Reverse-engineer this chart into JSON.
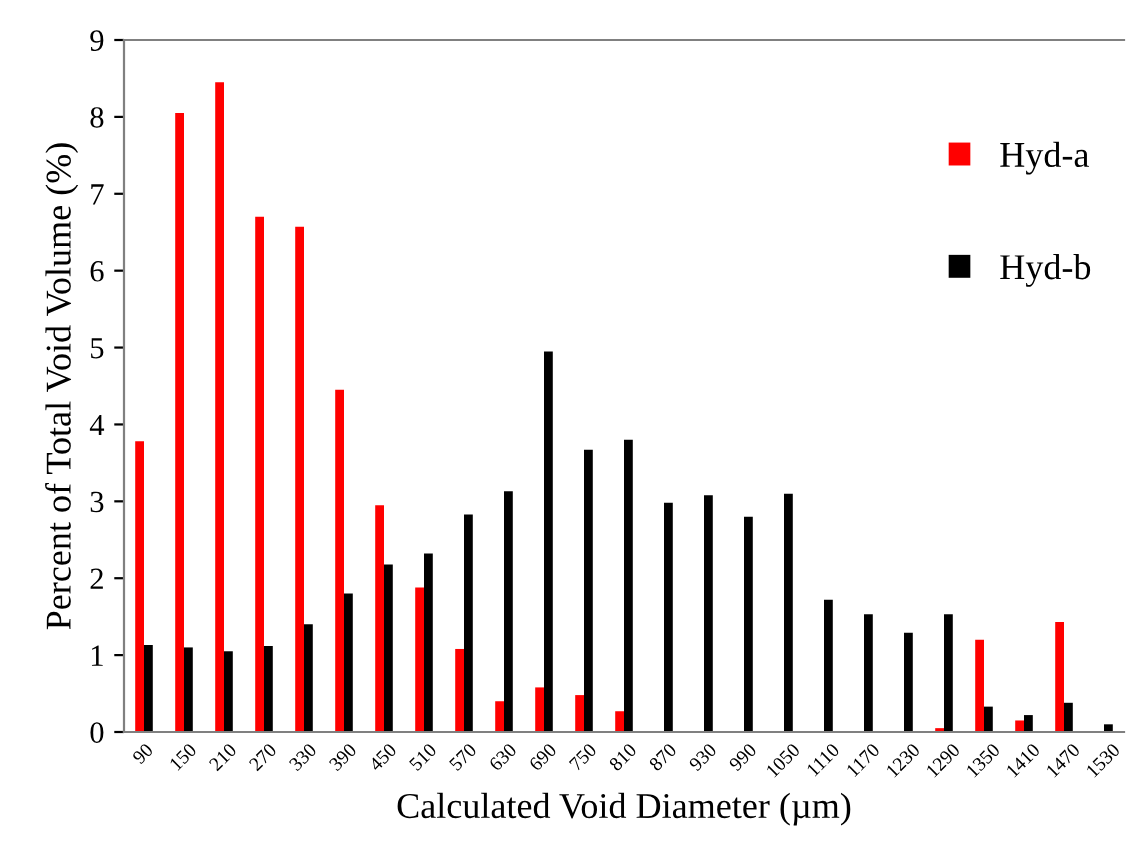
{
  "chart_data": {
    "type": "bar",
    "xlabel": "Calculated Void Diameter (µm)",
    "ylabel": "Percent of Total Void Volume (%)",
    "categories": [
      "90",
      "150",
      "210",
      "270",
      "330",
      "390",
      "450",
      "510",
      "570",
      "630",
      "690",
      "750",
      "810",
      "870",
      "930",
      "990",
      "1050",
      "1110",
      "1170",
      "1230",
      "1290",
      "1350",
      "1410",
      "1470",
      "1530"
    ],
    "series": [
      {
        "name": "Hyd-a",
        "color": "#ff0000",
        "values": [
          3.78,
          8.05,
          8.45,
          6.7,
          6.57,
          4.45,
          2.95,
          1.88,
          1.08,
          0.4,
          0.58,
          0.48,
          0.27,
          0,
          0,
          0,
          0,
          0,
          0,
          0,
          0.05,
          1.2,
          0.15,
          1.43,
          0
        ]
      },
      {
        "name": "Hyd-b",
        "color": "#000000",
        "values": [
          1.13,
          1.1,
          1.05,
          1.12,
          1.4,
          1.8,
          2.18,
          2.32,
          2.83,
          3.13,
          4.95,
          3.67,
          3.8,
          2.98,
          3.08,
          2.8,
          3.1,
          1.72,
          1.53,
          1.29,
          1.53,
          0.33,
          0.22,
          0.38,
          0.1
        ]
      }
    ],
    "ylim": [
      0,
      9
    ],
    "yticks": [
      0,
      1,
      2,
      3,
      4,
      5,
      6,
      7,
      8,
      9
    ],
    "grid": false,
    "legend": "top right"
  }
}
